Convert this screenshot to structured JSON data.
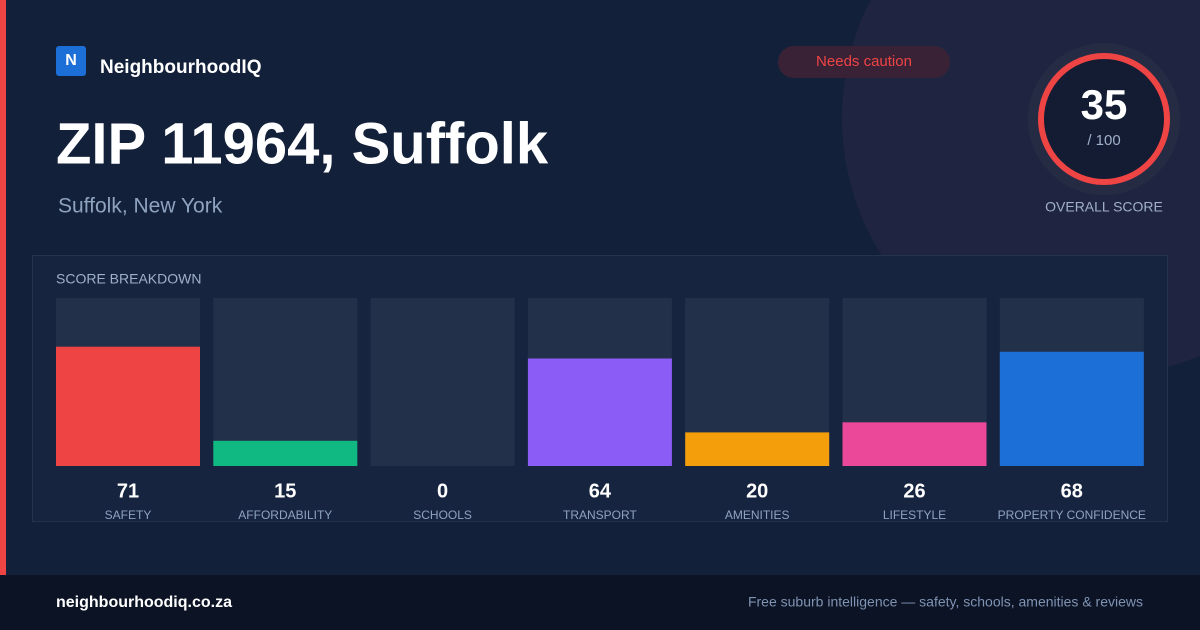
{
  "brand": {
    "logo": "N",
    "name": "NeighbourhoodIQ"
  },
  "badge": "Needs caution",
  "title": "ZIP 11964, Suffolk",
  "subtitle": "Suffolk, New York",
  "score": {
    "value": 35,
    "max_label": "/ 100",
    "label": "OVERALL SCORE"
  },
  "chart_data": {
    "type": "bar",
    "title": "SCORE BREAKDOWN",
    "categories": [
      "SAFETY",
      "AFFORDABILITY",
      "SCHOOLS",
      "TRANSPORT",
      "AMENITIES",
      "LIFESTYLE",
      "PROPERTY CONFIDENCE"
    ],
    "values": [
      71,
      15,
      0,
      64,
      20,
      26,
      68
    ],
    "colors": [
      "#ef4444",
      "#10b981",
      "#3b82f6",
      "#8b5cf6",
      "#f59e0b",
      "#ec4899",
      "#1d6fd8"
    ],
    "ylim": [
      0,
      100
    ]
  },
  "footer": {
    "site": "neighbourhoodiq.co.za",
    "tagline": "Free suburb intelligence — safety, schools, amenities & reviews"
  }
}
